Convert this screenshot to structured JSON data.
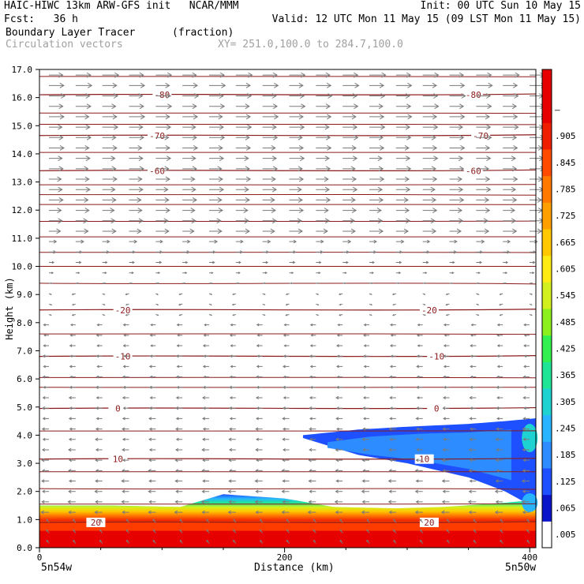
{
  "header": {
    "line1_left": "HAIC-HIWC 13km ARW-GFS init   NCAR/MMM",
    "line1_right": "Init: 00 UTC Sun 10 May 15",
    "line2_left": "Fcst:   36 h",
    "line2_right": "Valid: 12 UTC Mon 11 May 15 (09 LST Mon 11 May 15)",
    "line3_field": "Boundary Layer Tracer",
    "line3_units": "(fraction)",
    "line4_vectors": "Circulation vectors",
    "line4_xy": "XY= 251.0,100.0 to 284.7,100.0"
  },
  "footer": {
    "left_point": "5n54w",
    "right_point": "5n50w",
    "xlabel": "Distance (km)"
  },
  "colors": {
    "contour": "#8b1a1a",
    "vector": "#7a7a7a"
  },
  "chart_data": {
    "type": "heatmap",
    "xlabel": "Distance (km)",
    "ylabel": "Height (km)",
    "xlim": [
      0,
      405
    ],
    "ylim": [
      0,
      17
    ],
    "xticks": [
      "0",
      "200",
      "400"
    ],
    "xtick_values": [
      0,
      200,
      400
    ],
    "yticks": [
      "0.0",
      "1.0",
      "2.0",
      "3.0",
      "4.0",
      "5.0",
      "6.0",
      "7.0",
      "8.0",
      "9.0",
      "10.0",
      "11.0",
      "12.0",
      "13.0",
      "14.0",
      "15.0",
      "16.0",
      "17.0"
    ],
    "colorbar_labels": [
      ".005",
      ".065",
      ".125",
      ".185",
      ".245",
      ".305",
      ".365",
      ".425",
      ".485",
      ".545",
      ".605",
      ".665",
      ".725",
      ".785",
      ".845",
      ".905",
      "–"
    ],
    "colorbar_colors": [
      "#ffffff",
      "#0a14c8",
      "#1e50ff",
      "#2d8cff",
      "#28b4ff",
      "#1ed2d2",
      "#1ee696",
      "#32f050",
      "#8cf01e",
      "#d2f01e",
      "#ffeb14",
      "#ffc800",
      "#ffa000",
      "#ff7800",
      "#ff4b00",
      "#f01e00",
      "#e60000",
      "#e60000"
    ],
    "isotherms_c": [
      {
        "label": "-80",
        "height_km": 16.1,
        "label_x": [
          100,
          354
        ]
      },
      {
        "label": "-70",
        "height_km": 14.65,
        "label_x": [
          96,
          360
        ]
      },
      {
        "label": "-60",
        "height_km": 13.4,
        "label_x": [
          96,
          354
        ]
      },
      {
        "label": "-20",
        "height_km": 8.45,
        "label_x": [
          68,
          318
        ]
      },
      {
        "label": "-10",
        "height_km": 6.8,
        "label_x": [
          68,
          324
        ]
      },
      {
        "label": "0",
        "height_km": 4.95,
        "label_x": [
          64,
          324
        ]
      },
      {
        "label": "10",
        "height_km": 3.15,
        "label_x": [
          64,
          314
        ]
      },
      {
        "label": "20",
        "height_km": 0.9,
        "label_x": [
          46,
          318
        ]
      }
    ],
    "tracer_regions": [
      {
        "name": "boundary layer",
        "x_km": [
          0,
          405
        ],
        "top_km": [
          1.5,
          1.5,
          1.45,
          1.9,
          1.75,
          1.45,
          1.4,
          1.45,
          1.6,
          1.7
        ],
        "top_x_km": [
          0,
          60,
          115,
          150,
          200,
          240,
          290,
          330,
          380,
          405
        ]
      },
      {
        "name": "elevated plume",
        "x_km": [
          215,
          405
        ],
        "bottom_km": [
          3.9,
          3.3,
          3.0,
          2.5,
          2.0,
          1.4
        ],
        "top_km": [
          4.0,
          4.2,
          4.3,
          4.4,
          4.5,
          4.6
        ],
        "at_x_km": [
          215,
          260,
          300,
          350,
          380,
          405
        ]
      }
    ]
  }
}
